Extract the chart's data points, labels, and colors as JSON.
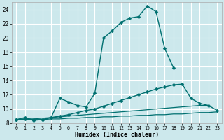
{
  "xlabel": "Humidex (Indice chaleur)",
  "bg_color": "#cce8ec",
  "grid_color": "#ffffff",
  "line_color": "#007070",
  "xlim": [
    -0.5,
    23.5
  ],
  "ylim": [
    8,
    25
  ],
  "xticks": [
    0,
    1,
    2,
    3,
    4,
    5,
    6,
    7,
    8,
    9,
    10,
    11,
    12,
    13,
    14,
    15,
    16,
    17,
    18,
    19,
    20,
    21,
    22,
    23
  ],
  "yticks": [
    8,
    10,
    12,
    14,
    16,
    18,
    20,
    22,
    24
  ],
  "series": [
    {
      "x": [
        0,
        1,
        2,
        3,
        4,
        5,
        6,
        7,
        8,
        9,
        10,
        11,
        12,
        13,
        14,
        15,
        16,
        17,
        18
      ],
      "y": [
        8.5,
        8.8,
        8.4,
        8.5,
        8.8,
        11.5,
        11.0,
        10.5,
        10.3,
        12.2,
        20.0,
        21.0,
        22.2,
        22.8,
        23.0,
        24.5,
        23.7,
        18.5,
        15.8
      ],
      "marker": "D",
      "markersize": 2.5,
      "lw": 1.0
    },
    {
      "x": [
        0,
        1,
        2,
        3,
        4,
        5,
        6,
        7,
        8,
        9,
        10,
        11,
        12,
        13,
        14,
        15,
        16,
        17,
        18,
        19,
        20,
        21,
        22,
        23
      ],
      "y": [
        8.5,
        8.6,
        8.5,
        8.5,
        8.8,
        9.0,
        9.2,
        9.5,
        9.8,
        10.0,
        10.4,
        10.8,
        11.2,
        11.6,
        12.0,
        12.4,
        12.8,
        13.1,
        13.4,
        13.5,
        11.5,
        10.8,
        10.5,
        9.8
      ],
      "marker": "D",
      "markersize": 2.5,
      "lw": 1.0
    },
    {
      "x": [
        0,
        1,
        2,
        3,
        4,
        5,
        6,
        7,
        8,
        9,
        10,
        11,
        12,
        13,
        14,
        15,
        16,
        17,
        18,
        19,
        20,
        21,
        22
      ],
      "y": [
        8.5,
        8.6,
        8.6,
        8.7,
        8.8,
        8.9,
        9.0,
        9.1,
        9.2,
        9.3,
        9.4,
        9.5,
        9.6,
        9.7,
        9.8,
        9.9,
        10.0,
        10.1,
        10.2,
        10.3,
        10.4,
        10.5,
        10.5
      ],
      "marker": null,
      "markersize": 0,
      "lw": 0.9
    },
    {
      "x": [
        0,
        1,
        2,
        3,
        4,
        5,
        6,
        7,
        8,
        9,
        10,
        11,
        12,
        13,
        14,
        15,
        16,
        17,
        18,
        19,
        20,
        21,
        22,
        23
      ],
      "y": [
        8.5,
        8.5,
        8.5,
        8.5,
        8.6,
        8.6,
        8.7,
        8.7,
        8.8,
        8.8,
        8.9,
        8.9,
        9.0,
        9.0,
        9.1,
        9.1,
        9.2,
        9.2,
        9.3,
        9.3,
        9.4,
        9.5,
        9.5,
        9.6
      ],
      "marker": null,
      "markersize": 0,
      "lw": 0.9
    }
  ]
}
